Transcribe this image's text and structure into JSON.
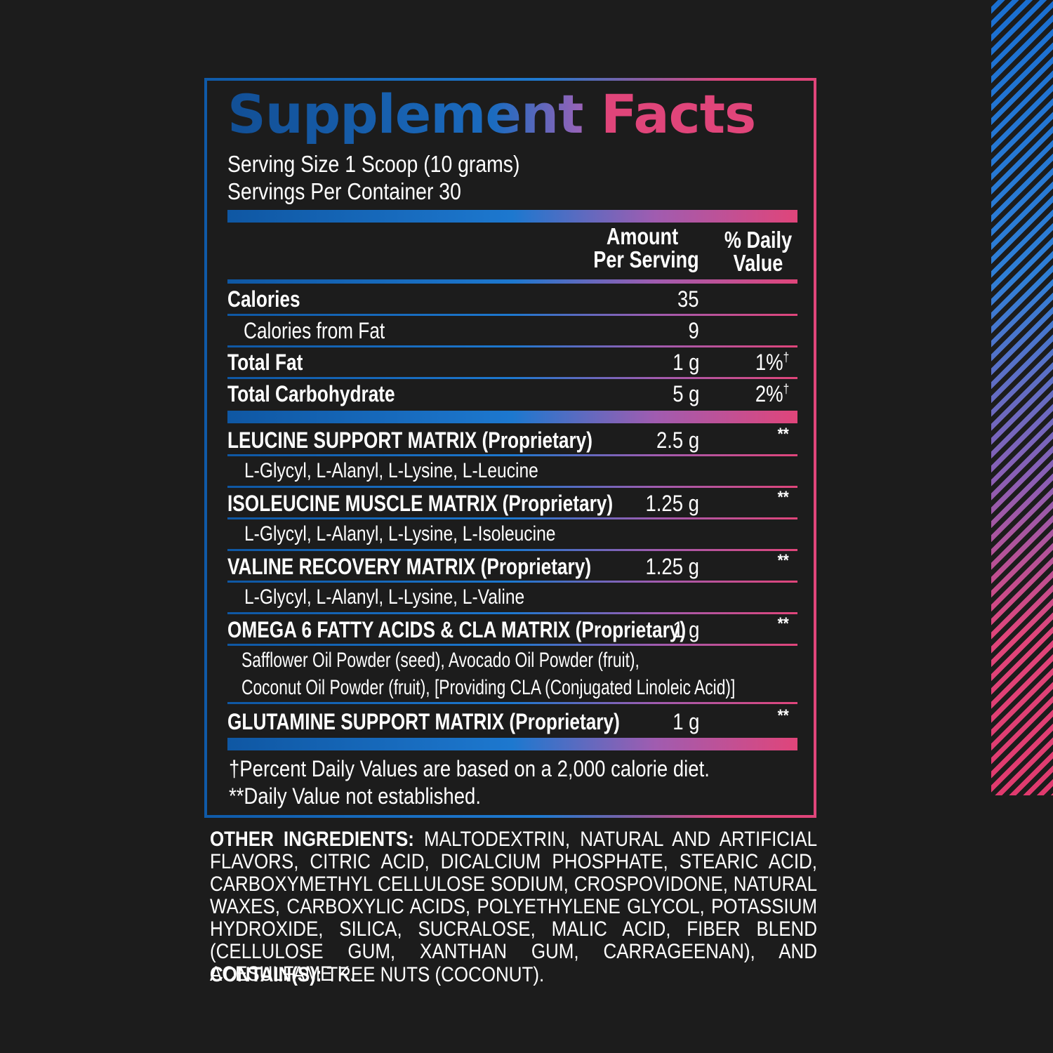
{
  "title": {
    "part1": "Supplement",
    "part2": "Facts"
  },
  "serving": {
    "size": "Serving Size 1 Scoop (10 grams)",
    "per_container": "Servings Per Container 30"
  },
  "header": {
    "amount_line1": "Amount",
    "amount_line2": "Per Serving",
    "dv_line1": "% Daily",
    "dv_line2": "Value"
  },
  "basic_rows": [
    {
      "name": "Calories",
      "amount": "35",
      "dv": ""
    },
    {
      "name": "Calories from Fat",
      "amount": "9",
      "dv": ""
    },
    {
      "name": "Total Fat",
      "amount": "1 g",
      "dv": "1%",
      "mark": "†"
    },
    {
      "name": "Total Carbohydrate",
      "amount": "5 g",
      "dv": "2%",
      "mark": "†"
    }
  ],
  "matrices": [
    {
      "name": "LEUCINE SUPPORT MATRIX (Proprietary)",
      "amount": "2.5 g",
      "dv": "**",
      "ingredients": "L-Glycyl, L-Alanyl, L-Lysine, L-Leucine"
    },
    {
      "name": "ISOLEUCINE MUSCLE MATRIX (Proprietary)",
      "amount": "1.25 g",
      "dv": "**",
      "ingredients": "L-Glycyl, L-Alanyl, L-Lysine, L-Isoleucine"
    },
    {
      "name": "VALINE RECOVERY MATRIX (Proprietary)",
      "amount": "1.25 g",
      "dv": "**",
      "ingredients": "L-Glycyl, L-Alanyl, L-Lysine, L-Valine"
    },
    {
      "name": "OMEGA 6 FATTY ACIDS  & CLA MATRIX (Proprietary)",
      "amount": "1 g",
      "dv": "**",
      "ingredients_line1": "Safflower Oil Powder (seed), Avocado Oil Powder (fruit),",
      "ingredients_line2": "Coconut Oil Powder (fruit), [Providing CLA (Conjugated Linoleic Acid)]"
    },
    {
      "name": "GLUTAMINE SUPPORT MATRIX (Proprietary)",
      "amount": "1 g",
      "dv": "**"
    }
  ],
  "footnotes": {
    "dagger": "†Percent Daily Values are based on a 2,000 calorie diet.",
    "stars": "**Daily Value not established."
  },
  "other_ingredients": {
    "label": "OTHER INGREDIENTS:",
    "text": "MALTODEXTRIN, NATURAL AND ARTIFICIAL FLAVORS, CITRIC ACID, DICALCIUM PHOSPHATE, STEARIC ACID, CARBOXYMETHYL CELLULOSE SODIUM, CROSPOVIDONE, NATURAL WAXES, CARBOXYLIC ACIDS, POLYETHYLENE GLYCOL, POTASSIUM HYDROXIDE, SILICA, SUCRALOSE, MALIC ACID, FIBER BLEND (CELLULOSE GUM, XANTHAN GUM, CARRAGEENAN), AND ACESULFAME K."
  },
  "contains": {
    "label": "CONTAIN(S):",
    "text": "TREE NUTS (COCONUT)."
  },
  "colors": {
    "background": "#1c1c1c",
    "blue": "#1b6bbf",
    "pink": "#e0457a"
  }
}
